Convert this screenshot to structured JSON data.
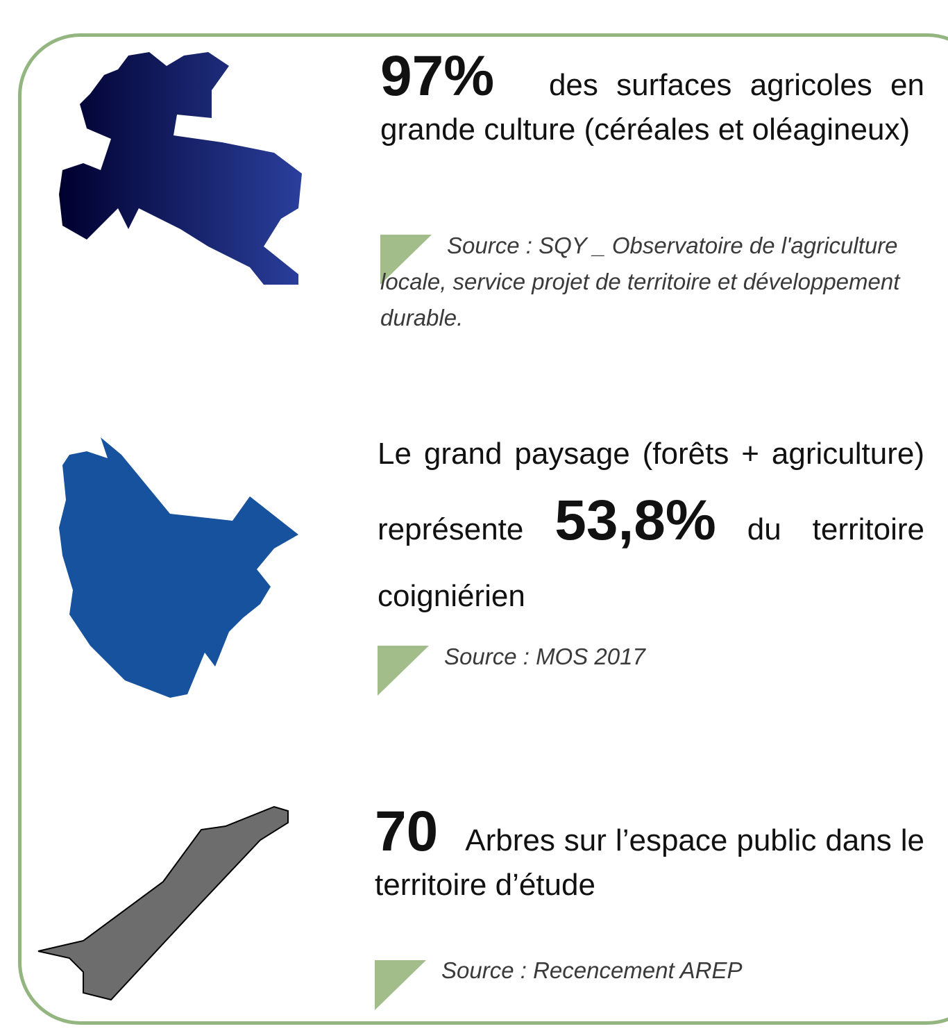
{
  "items": [
    {
      "value": "97%",
      "text": "des surfaces agricoles en grande culture (céréales et oléagineux)",
      "source": "Source : SQY _ Observatoire de l'agriculture locale, service projet de territoire et développement durable."
    },
    {
      "text_before": "Le grand paysage (forêts + agriculture) représente",
      "value": "53,8%",
      "text_after": "du territoire coigniérien",
      "source": "Source : MOS 2017"
    },
    {
      "value": "70",
      "text": "Arbres sur l’espace public dans le territoire d’étude",
      "source": "Source : Recencement AREP"
    }
  ]
}
